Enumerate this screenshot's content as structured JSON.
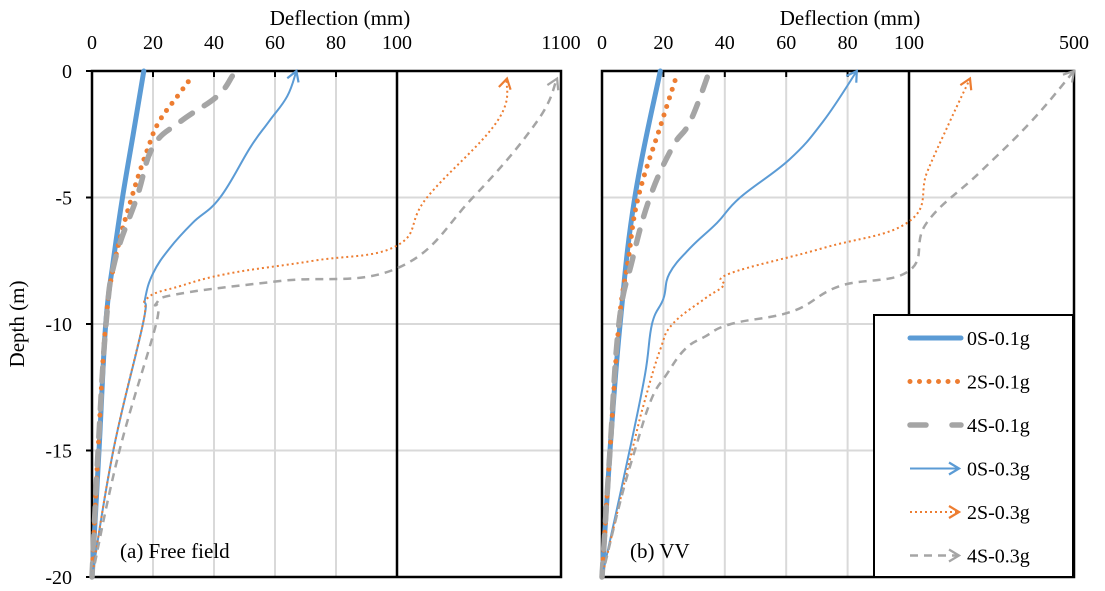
{
  "chart_data": [
    {
      "type": "line",
      "panel_label": "(a) Free field",
      "xlabel": "Deflection (mm)",
      "ylabel": "Depth (m)",
      "x_tick_labels": [
        "0",
        "20",
        "40",
        "60",
        "80",
        "100",
        "1100"
      ],
      "x_ticks": [
        0,
        20,
        40,
        60,
        80,
        100,
        1100
      ],
      "x_axis_break": 100,
      "xlim": [
        0,
        1100
      ],
      "y_tick_labels": [
        "0",
        "-5",
        "-10",
        "-15",
        "-20"
      ],
      "y_ticks": [
        0,
        -5,
        -10,
        -15,
        -20
      ],
      "ylim": [
        -20,
        0
      ],
      "grid": true,
      "series": [
        {
          "name": "0S-0.1g",
          "depth": [
            -20,
            -15,
            -10,
            -7.5,
            -5,
            -2.5,
            0
          ],
          "deflection": [
            0,
            2.3,
            4.5,
            7,
            10,
            13.5,
            17
          ]
        },
        {
          "name": "2S-0.1g",
          "depth": [
            -20,
            -15,
            -10,
            -7.5,
            -5,
            -3,
            -2,
            -1,
            -0.35
          ],
          "deflection": [
            0,
            2,
            4.5,
            7.5,
            13,
            18.5,
            22,
            28,
            32
          ]
        },
        {
          "name": "4S-0.1g",
          "depth": [
            -20,
            -15,
            -10,
            -7.5,
            -5,
            -3,
            -2,
            -1,
            -0.2
          ],
          "deflection": [
            0,
            2,
            4.6,
            7.5,
            14.7,
            20,
            29,
            41,
            46
          ]
        },
        {
          "name": "0S-0.3g",
          "depth": [
            -20,
            -15,
            -10,
            -9,
            -8,
            -7,
            -6,
            -5,
            -3,
            -2,
            -1,
            0
          ],
          "deflection": [
            0,
            7,
            16.7,
            17.4,
            20,
            25.5,
            33,
            42,
            52,
            58,
            64,
            67
          ]
        },
        {
          "name": "2S-0.3g",
          "depth": [
            -20,
            -15,
            -10,
            -9,
            -8.5,
            -8,
            -7.5,
            -6.9,
            -5,
            -2,
            -0.3
          ],
          "deflection": [
            0,
            7,
            16.7,
            18,
            29,
            45,
            72.5,
            100,
            283,
            710,
            771
          ]
        },
        {
          "name": "4S-0.3g",
          "depth": [
            -20,
            -15,
            -10,
            -9.2,
            -8.8,
            -8.3,
            -7.8,
            -5,
            -2,
            -0.3
          ],
          "deflection": [
            0,
            9,
            21,
            21,
            29,
            61.6,
            100,
            563,
            953,
            1076
          ]
        }
      ]
    },
    {
      "type": "line",
      "panel_label": "(b) VV",
      "xlabel": "Deflection (mm)",
      "x_tick_labels": [
        "0",
        "20",
        "40",
        "60",
        "80",
        "100",
        "500"
      ],
      "x_ticks": [
        0,
        20,
        40,
        60,
        80,
        100,
        500
      ],
      "x_axis_break": 100,
      "xlim": [
        0,
        500
      ],
      "ylim": [
        -20,
        0
      ],
      "grid": true,
      "series": [
        {
          "name": "0S-0.1g",
          "depth": [
            -20,
            -15,
            -10,
            -5,
            0
          ],
          "deflection": [
            0,
            2.6,
            5.9,
            10.7,
            19
          ]
        },
        {
          "name": "2S-0.1g",
          "depth": [
            -20,
            -15,
            -10,
            -7.5,
            -5,
            -2,
            -0.3
          ],
          "deflection": [
            0,
            2.6,
            5.5,
            8.5,
            11.8,
            19.5,
            24
          ]
        },
        {
          "name": "4S-0.1g",
          "depth": [
            -20,
            -15,
            -10,
            -7.5,
            -5,
            -3,
            -2,
            0
          ],
          "deflection": [
            0,
            2.6,
            5.5,
            9.8,
            15.6,
            23,
            28.7,
            35
          ]
        },
        {
          "name": "0S-0.3g",
          "depth": [
            -20,
            -15,
            -12,
            -10,
            -9,
            -8,
            -7,
            -6,
            -5,
            -3.5,
            -2,
            0
          ],
          "deflection": [
            0,
            9,
            14,
            16.3,
            20,
            22,
            28.7,
            37.5,
            45,
            61,
            72,
            83
          ]
        },
        {
          "name": "2S-0.3g",
          "depth": [
            -20,
            -15,
            -13,
            -11,
            -10,
            -9,
            -8.5,
            -8,
            -7,
            -5.95,
            -4,
            -2,
            -0.3
          ],
          "deflection": [
            0,
            9.8,
            14,
            19,
            23,
            33.5,
            39.5,
            41.7,
            72,
            100,
            144,
            199,
            248
          ]
        },
        {
          "name": "4S-0.3g",
          "depth": [
            -20,
            -17,
            -15,
            -13,
            -12,
            -11,
            -10.5,
            -10,
            -9.5,
            -8.5,
            -7.9,
            -6,
            -4,
            -2,
            0
          ],
          "deflection": [
            0,
            6,
            10.7,
            16,
            21,
            27,
            33.5,
            42,
            62,
            77.5,
            100,
            143,
            272,
            396,
            500
          ]
        }
      ]
    }
  ],
  "legend": {
    "placement": "bottom-right",
    "entries": [
      "0S-0.1g",
      "2S-0.1g",
      "4S-0.1g",
      "0S-0.3g",
      "2S-0.3g",
      "4S-0.3g"
    ]
  },
  "colors": {
    "blue": "#5b9bd5",
    "orange": "#ed7d31",
    "gray": "#a5a5a5",
    "grid": "#d9d9d9"
  }
}
